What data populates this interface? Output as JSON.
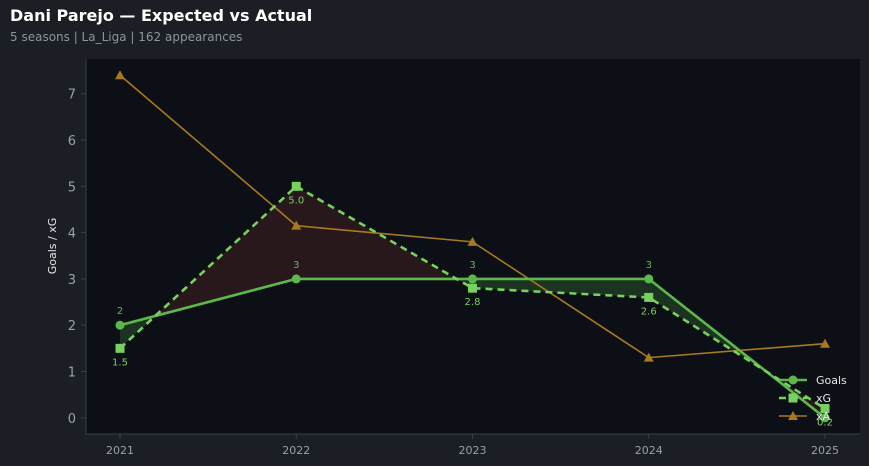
{
  "header": {
    "title": "Dani Parejo — Expected vs Actual",
    "subtitle": "5 seasons | La_Liga | 162 appearances"
  },
  "chart_data": {
    "type": "line",
    "x": [
      "2021",
      "2022",
      "2023",
      "2024",
      "2025"
    ],
    "ylabel": "Goals / xG",
    "ylim": [
      -0.35,
      7.75
    ],
    "yticks": [
      "0",
      "1",
      "2",
      "3",
      "4",
      "5",
      "6",
      "7"
    ],
    "grid": false,
    "legend_position": "bottom-right",
    "series": [
      {
        "name": "Goals",
        "values": [
          2,
          3,
          3,
          3,
          0
        ],
        "labels": [
          "2",
          "3",
          "3",
          "3",
          ""
        ],
        "color": "#5cb84a",
        "marker": "circle",
        "style": "solid"
      },
      {
        "name": "xG",
        "values": [
          1.5,
          5.0,
          2.8,
          2.6,
          0.2
        ],
        "labels": [
          "1.5",
          "5.0",
          "2.8",
          "2.6",
          "0.2"
        ],
        "color": "#78d05e",
        "marker": "square",
        "style": "dashed"
      },
      {
        "name": "xA",
        "values": [
          7.4,
          4.15,
          3.8,
          1.3,
          1.6
        ],
        "labels": [
          "",
          "",
          "",
          "",
          ""
        ],
        "color": "#a8791f",
        "marker": "triangle",
        "style": "solid"
      }
    ],
    "colors": {
      "background": "#1b1e25",
      "plot_background": "#0c0f15",
      "overperformance_fill": "#1e3a22",
      "underperformance_fill": "#2e1a1c"
    }
  }
}
